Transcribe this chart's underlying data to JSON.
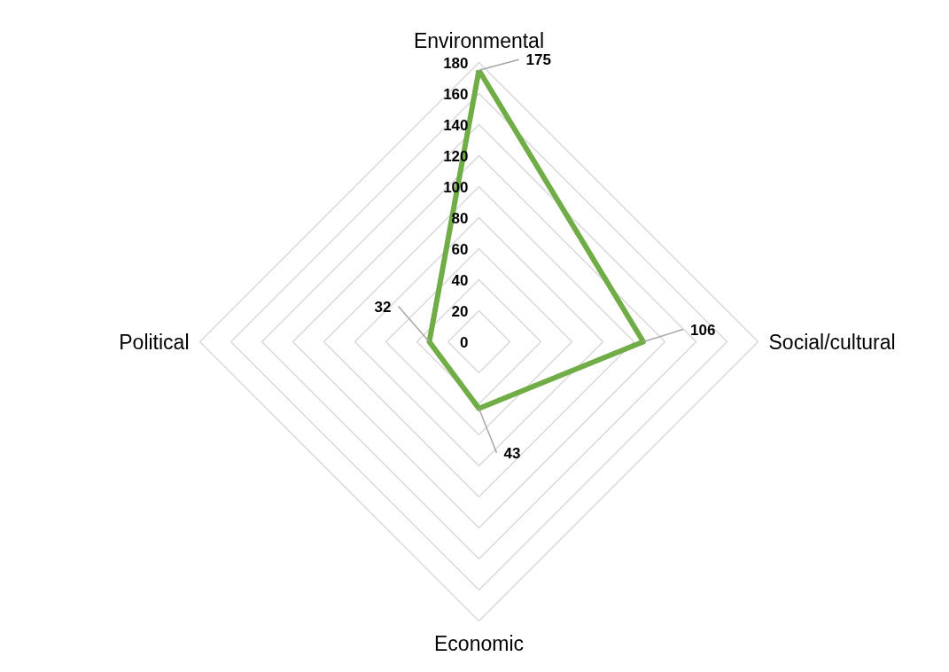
{
  "chart_data": {
    "type": "radar",
    "categories": [
      "Environmental",
      "Social/cultural",
      "Economic",
      "Political"
    ],
    "series": [
      {
        "color": "#70ad47",
        "values": [
          175,
          106,
          43,
          32
        ]
      }
    ],
    "ylim": [
      0,
      180
    ],
    "yticks": [
      0,
      20,
      40,
      60,
      80,
      100,
      120,
      140,
      160,
      180
    ],
    "grid": true,
    "data_labels": true,
    "marker": "none",
    "line_style": "solid"
  }
}
